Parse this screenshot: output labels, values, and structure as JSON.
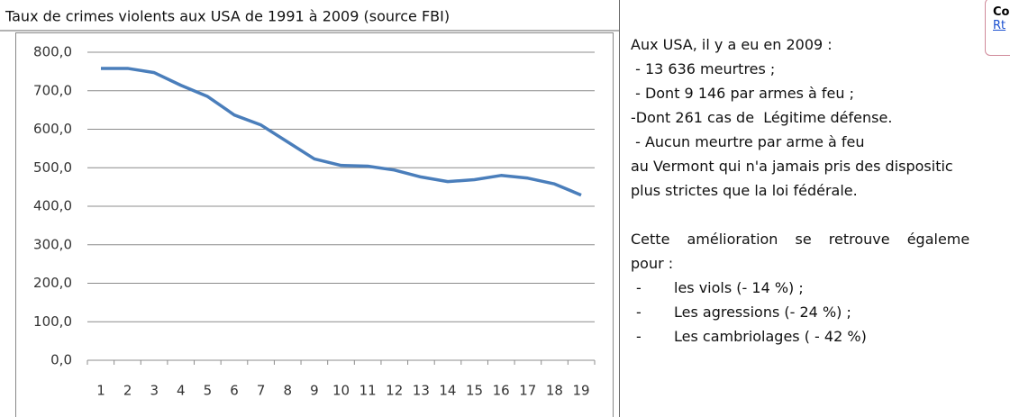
{
  "chart_data": {
    "type": "line",
    "title": "Taux de crimes violents aux USA de 1991 à 2009 (source FBI)",
    "categories": [
      "1",
      "2",
      "3",
      "4",
      "5",
      "6",
      "7",
      "8",
      "9",
      "10",
      "11",
      "12",
      "13",
      "14",
      "15",
      "16",
      "17",
      "18",
      "19"
    ],
    "series": [
      {
        "color": "#4a7ebb",
        "values": [
          758,
          758,
          747,
          714,
          685,
          637,
          611,
          567,
          523,
          506,
          504,
          494,
          476,
          464,
          469,
          480,
          473,
          458,
          429
        ]
      }
    ],
    "ylim": [
      0,
      800
    ],
    "yticks": [
      {
        "value": 0,
        "label": "0,0"
      },
      {
        "value": 100,
        "label": "100,0"
      },
      {
        "value": 200,
        "label": "200,0"
      },
      {
        "value": 300,
        "label": "300,0"
      },
      {
        "value": 400,
        "label": "400,0"
      },
      {
        "value": 500,
        "label": "500,0"
      },
      {
        "value": 600,
        "label": "600,0"
      },
      {
        "value": 700,
        "label": "700,0"
      },
      {
        "value": 800,
        "label": "800,0"
      }
    ],
    "grid": true
  },
  "text_panel": {
    "lines": [
      "Aux USA, il y a eu en 2009 :",
      " - 13 636 meurtres ;",
      " - Dont 9 146 par armes à feu ;",
      "-Dont 261 cas de  Légitime défense.",
      " - Aucun meurtre par arme à feu",
      "au Vermont qui n'a jamais pris des dispositic",
      "plus strictes que la loi fédérale."
    ],
    "paragraph": [
      "Cette amélioration se retrouve égaleme",
      "pour :"
    ],
    "list_marker": "-",
    "list": [
      "les viols (- 14 %) ;",
      "Les agressions (- 24 %) ;",
      "Les cambriolages ( - 42 %)"
    ]
  },
  "comment": {
    "author": "Co",
    "link": "Rt"
  }
}
